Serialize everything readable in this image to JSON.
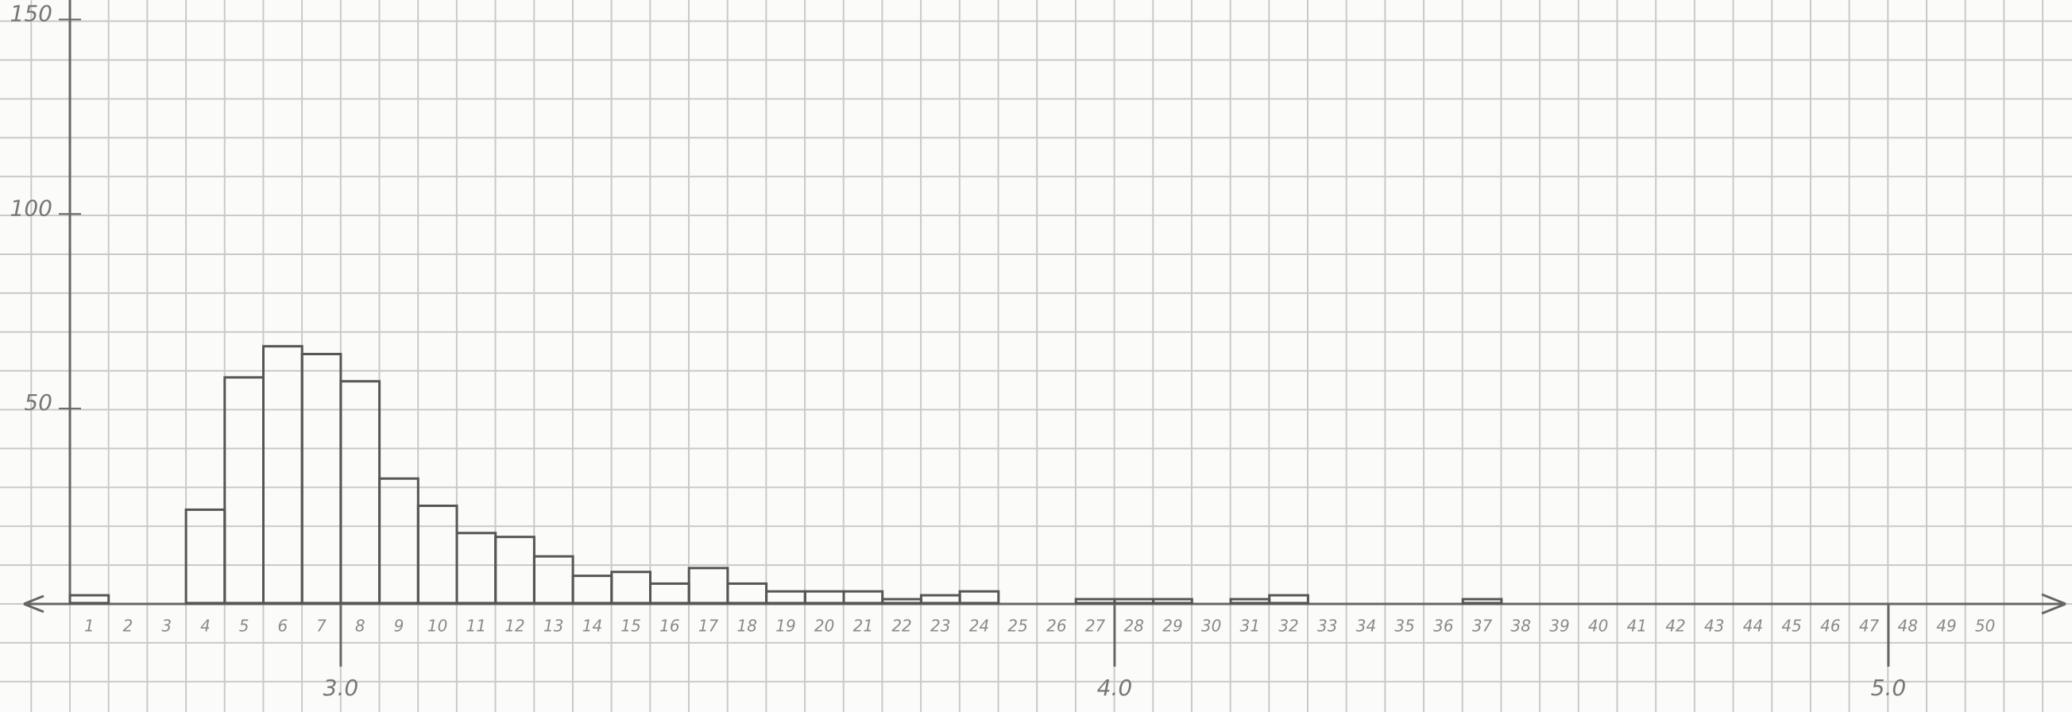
{
  "chart_data": {
    "type": "histogram",
    "categories": [
      1,
      2,
      3,
      4,
      5,
      6,
      7,
      8,
      9,
      10,
      11,
      12,
      13,
      14,
      15,
      16,
      17,
      18,
      19,
      20,
      21,
      22,
      23,
      24,
      25,
      26,
      27,
      28,
      29,
      30,
      31,
      32,
      33,
      34,
      35,
      36,
      37,
      38,
      39,
      40,
      41,
      42,
      43,
      44,
      45,
      46,
      47,
      48,
      49,
      50
    ],
    "bins": [
      2.65,
      2.7,
      2.75,
      2.8,
      2.85,
      2.9,
      2.95,
      3,
      3.05,
      3.1,
      3.15,
      3.2,
      3.25,
      3.3,
      3.35,
      3.4,
      3.45,
      3.5,
      3.55,
      3.6,
      3.65,
      3.7,
      3.75,
      3.8,
      3.85,
      3.9,
      3.95,
      4,
      4.05,
      4.1,
      4.15,
      4.2,
      4.25,
      4.3,
      4.35,
      4.4,
      4.45,
      4.5,
      4.55,
      4.6,
      4.65,
      4.7,
      4.75,
      4.8,
      4.85,
      4.9,
      4.95,
      5,
      5.05,
      5.1,
      5.15
    ],
    "values": [
      2,
      0,
      0,
      24,
      58,
      66,
      64,
      57,
      32,
      25,
      18,
      17,
      12,
      7,
      8,
      5,
      9,
      5,
      3,
      3,
      3,
      1,
      2,
      3,
      0,
      0,
      1,
      1,
      1,
      0,
      1,
      2,
      0,
      0,
      0,
      0,
      1,
      0,
      0,
      0,
      0,
      0,
      0,
      0,
      0,
      0,
      0,
      0,
      0,
      0
    ],
    "color": "#555555",
    "xlim": [
      2.65,
      5.15
    ],
    "xticks": [
      {
        "value": 3,
        "label": "3.0"
      },
      {
        "value": 4,
        "label": "4.0"
      },
      {
        "value": 5,
        "label": "5.0"
      }
    ],
    "ylim": [
      -28,
      155
    ],
    "yticks": [
      50,
      100,
      150
    ]
  }
}
